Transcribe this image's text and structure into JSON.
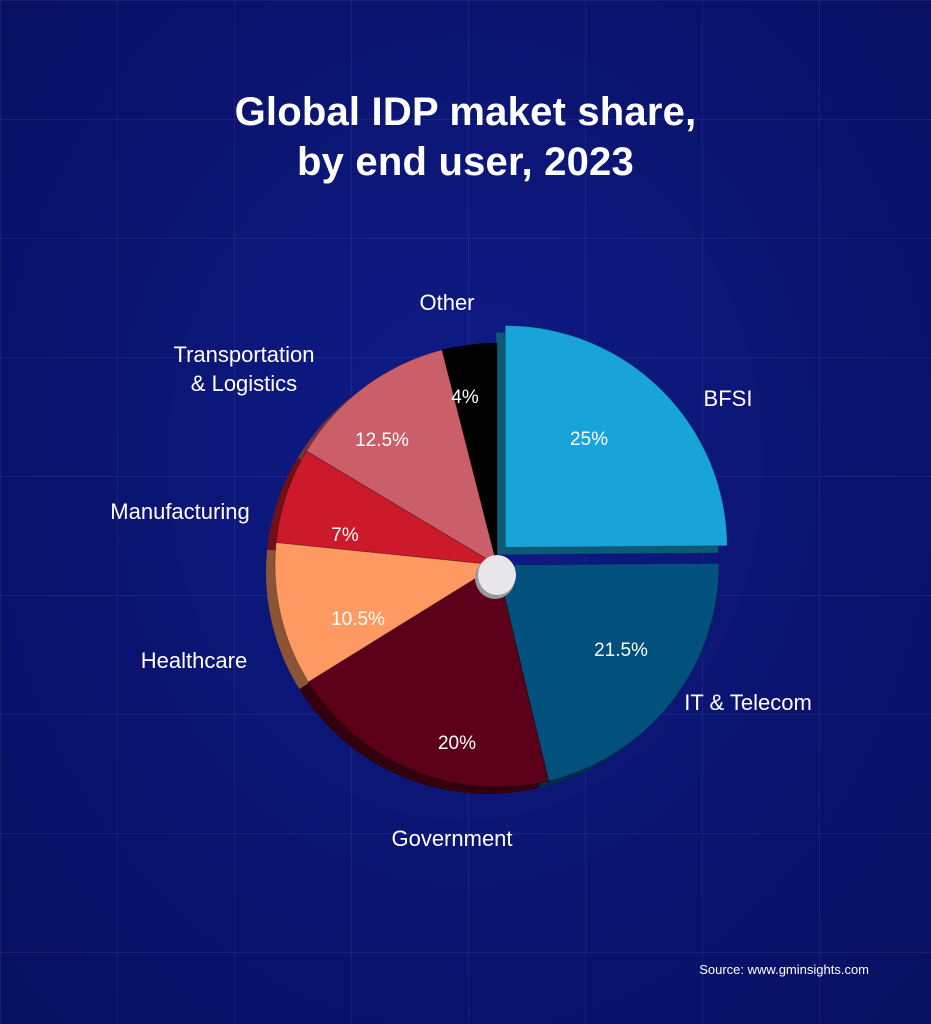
{
  "chart_data": {
    "type": "pie",
    "title_lines": [
      "Global IDP maket share,",
      "by end user, 2023"
    ],
    "source": "Source: www.gminsights.com",
    "slices": [
      {
        "label": "BFSI",
        "value": 25,
        "value_label": "25%",
        "color": "#18a3d9",
        "exploded": true
      },
      {
        "label": "IT & Telecom",
        "value": 21.5,
        "value_label": "21.5%",
        "color": "#02507e"
      },
      {
        "label": "Government",
        "value": 20,
        "value_label": "20%",
        "color": "#5c0019"
      },
      {
        "label": "Healthcare",
        "value": 10.5,
        "value_label": "10.5%",
        "color": "#ff9962"
      },
      {
        "label": "Manufacturing",
        "value": 7,
        "value_label": "7%",
        "color": "#cd1a2a"
      },
      {
        "label": "Transportation & Logistics",
        "label_lines": [
          "Transportation",
          "& Logistics"
        ],
        "value": 12.5,
        "value_label": "12.5%",
        "color": "#cb5f69"
      },
      {
        "label": "Other",
        "value": 4,
        "value_label": "4%",
        "color": "#000000"
      }
    ]
  }
}
